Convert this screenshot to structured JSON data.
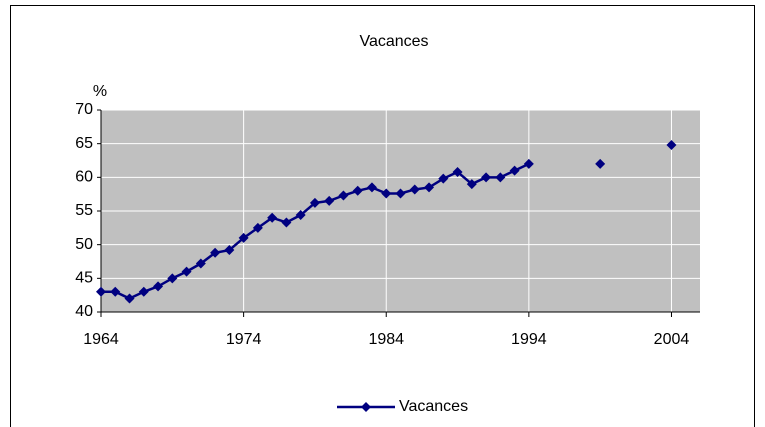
{
  "chart_data": {
    "type": "line",
    "title": "Vacances",
    "y_label": "%",
    "x": [
      1964,
      1965,
      1966,
      1967,
      1968,
      1969,
      1970,
      1971,
      1972,
      1973,
      1974,
      1975,
      1976,
      1977,
      1978,
      1979,
      1980,
      1981,
      1982,
      1983,
      1984,
      1985,
      1986,
      1987,
      1988,
      1989,
      1990,
      1991,
      1992,
      1993,
      1994,
      1995,
      1996,
      1997,
      1998,
      1999,
      2000,
      2001,
      2002,
      2003,
      2004
    ],
    "series": [
      {
        "name": "Vacances",
        "color": "#000080",
        "values": [
          43,
          43,
          42,
          43,
          43.8,
          45,
          46,
          47.2,
          48.8,
          49.2,
          51,
          52.5,
          54,
          53.3,
          54.4,
          56.2,
          56.5,
          57.3,
          58,
          58.5,
          57.6,
          57.6,
          58.2,
          58.5,
          59.8,
          60.8,
          59,
          60,
          60,
          61,
          62,
          null,
          null,
          null,
          null,
          62,
          null,
          null,
          null,
          null,
          64.8
        ]
      }
    ],
    "xlim": [
      1964,
      2006
    ],
    "xticks": [
      1964,
      1974,
      1984,
      1994,
      2004
    ],
    "ylim": [
      40,
      70
    ],
    "yticks": [
      40,
      45,
      50,
      55,
      60,
      65,
      70
    ],
    "grid": true,
    "legend": "bottom"
  }
}
